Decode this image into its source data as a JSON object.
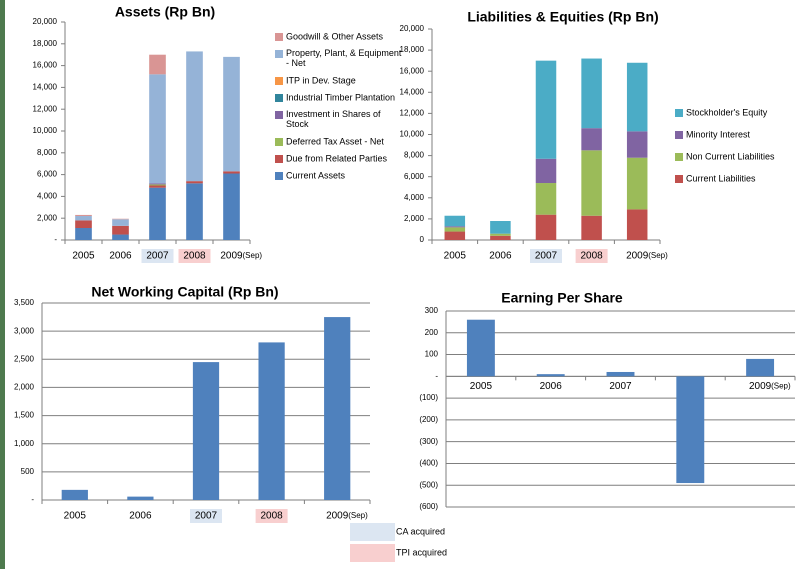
{
  "chart_data": [
    {
      "type": "bar",
      "stacked": true,
      "title": "Assets (Rp Bn)",
      "categories": [
        "2005",
        "2006",
        "2007",
        "2008",
        "2009"
      ],
      "category_colors": [
        null,
        null,
        "#dce6f2",
        "#f8cfcf",
        null
      ],
      "annotation": "(Sep)",
      "series": [
        {
          "name": "Goodwill & Other Assets",
          "color": "#d99594",
          "values": [
            100,
            50,
            1800,
            0,
            0
          ]
        },
        {
          "name": "Property, Plant, & Equipment - Net",
          "color": "#95b3d7",
          "values": [
            400,
            600,
            10000,
            11900,
            10500
          ]
        },
        {
          "name": "ITP in Dev. Stage",
          "color": "#f79646",
          "values": [
            0,
            0,
            0,
            0,
            0
          ]
        },
        {
          "name": "Industrial Timber Plantation",
          "color": "#31859c",
          "values": [
            0,
            0,
            0,
            0,
            0
          ]
        },
        {
          "name": "Investment in Shares of Stock",
          "color": "#8064a2",
          "values": [
            0,
            0,
            100,
            0,
            0
          ]
        },
        {
          "name": "Deferred Tax Asset - Net",
          "color": "#9bbb59",
          "values": [
            0,
            0,
            100,
            0,
            0
          ]
        },
        {
          "name": "Due from Related Parties",
          "color": "#c0504d",
          "values": [
            700,
            800,
            200,
            200,
            200
          ]
        },
        {
          "name": "Current Assets",
          "color": "#4f81bd",
          "values": [
            1100,
            500,
            4800,
            5200,
            6100
          ]
        }
      ],
      "ylim": [
        0,
        20000
      ],
      "yticks": [
        {
          "value": 0,
          "label": "-"
        },
        {
          "value": 2000,
          "label": "2,000"
        },
        {
          "value": 4000,
          "label": "4,000"
        },
        {
          "value": 6000,
          "label": "6,000"
        },
        {
          "value": 8000,
          "label": "8,000"
        },
        {
          "value": 10000,
          "label": "10,000"
        },
        {
          "value": 12000,
          "label": "12,000"
        },
        {
          "value": 14000,
          "label": "14,000"
        },
        {
          "value": 16000,
          "label": "16,000"
        },
        {
          "value": 18000,
          "label": "18,000"
        },
        {
          "value": 20000,
          "label": "20,000"
        }
      ],
      "grid": false
    },
    {
      "type": "bar",
      "stacked": true,
      "title": "Liabilities & Equities (Rp Bn)",
      "categories": [
        "2005",
        "2006",
        "2007",
        "2008",
        "2009"
      ],
      "category_colors": [
        null,
        null,
        "#dce6f2",
        "#f8cfcf",
        null
      ],
      "annotation": "(Sep)",
      "series": [
        {
          "name": "Stockholder's Equity",
          "color": "#4bacc6",
          "values": [
            1000,
            1200,
            9300,
            6600,
            6500
          ]
        },
        {
          "name": "Minority Interest",
          "color": "#8064a2",
          "values": [
            100,
            0,
            2300,
            2100,
            2500
          ]
        },
        {
          "name": "Non Current Liabilities",
          "color": "#9bbb59",
          "values": [
            400,
            200,
            3000,
            6200,
            4900
          ]
        },
        {
          "name": "Current Liabilities",
          "color": "#c0504d",
          "values": [
            800,
            400,
            2400,
            2300,
            2900
          ]
        }
      ],
      "ylim": [
        0,
        20000
      ],
      "yticks": [
        0,
        {
          "value": 2000,
          "label": "2,000"
        },
        {
          "value": 4000,
          "label": "4,000"
        },
        {
          "value": 6000,
          "label": "6,000"
        },
        {
          "value": 8000,
          "label": "8,000"
        },
        {
          "value": 10000,
          "label": "10,000"
        },
        {
          "value": 12000,
          "label": "12,000"
        },
        {
          "value": 14000,
          "label": "14,000"
        },
        {
          "value": 16000,
          "label": "16,000"
        },
        {
          "value": 18000,
          "label": "18,000"
        },
        {
          "value": 20000,
          "label": "20,000"
        }
      ],
      "grid": false
    },
    {
      "type": "bar",
      "title": "Net Working Capital (Rp Bn)",
      "categories": [
        "2005",
        "2006",
        "2007",
        "2008",
        "2009"
      ],
      "category_colors": [
        null,
        null,
        "#dce6f2",
        "#f8cfcf",
        null
      ],
      "annotation": "(Sep)",
      "values": [
        180,
        60,
        2450,
        2800,
        3250
      ],
      "color": "#4f81bd",
      "ylim": [
        0,
        3500
      ],
      "yticks": [
        {
          "value": 0,
          "label": "-"
        },
        500,
        {
          "value": 1000,
          "label": "1,000"
        },
        {
          "value": 1500,
          "label": "1,500"
        },
        {
          "value": 2000,
          "label": "2,000"
        },
        {
          "value": 2500,
          "label": "2,500"
        },
        {
          "value": 3000,
          "label": "3,000"
        },
        {
          "value": 3500,
          "label": "3,500"
        }
      ],
      "grid": true
    },
    {
      "type": "bar",
      "title": "Earning Per Share",
      "categories": [
        "2005",
        "2006",
        "2007",
        "2008",
        "2009"
      ],
      "annotation": "(Sep)",
      "values": [
        260,
        10,
        20,
        -490,
        80
      ],
      "color": "#4f81bd",
      "ylim": [
        -600,
        300
      ],
      "yticks": [
        300,
        200,
        100,
        {
          "value": 0,
          "label": "-"
        },
        {
          "value": -100,
          "label": "(100)"
        },
        {
          "value": -200,
          "label": "(200)"
        },
        {
          "value": -300,
          "label": "(300)"
        },
        {
          "value": -400,
          "label": "(400)"
        },
        {
          "value": -500,
          "label": "(500)"
        },
        {
          "value": -600,
          "label": "(600)"
        }
      ],
      "grid": true
    }
  ],
  "legend": [
    {
      "label": "CA acquired",
      "color": "#dce6f2"
    },
    {
      "label": "TPI acquired",
      "color": "#f8cfcf"
    }
  ]
}
